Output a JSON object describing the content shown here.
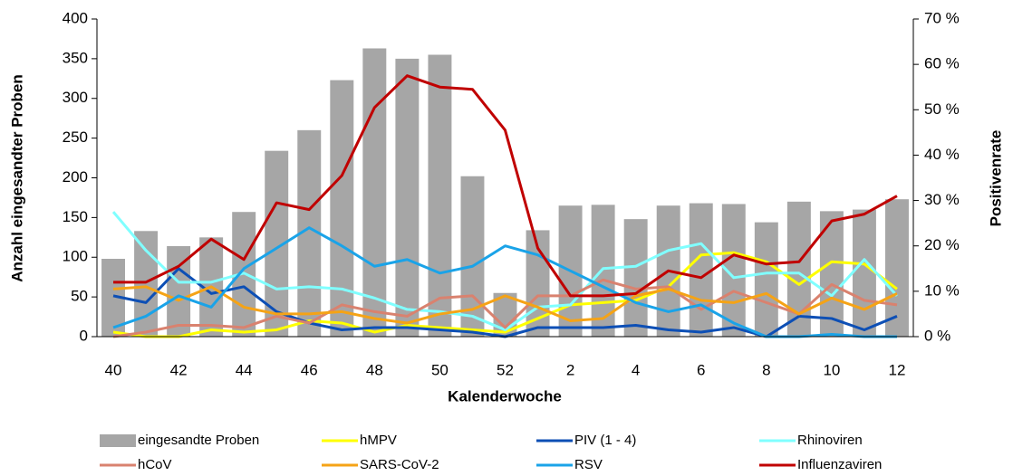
{
  "chart_data": {
    "type": "combo",
    "x_label": "Kalenderwoche",
    "y_label": "Anzahl eingesandter Proben",
    "y2_label": "Positivenrate",
    "categories": [
      40,
      null,
      42,
      null,
      44,
      null,
      46,
      null,
      48,
      null,
      50,
      null,
      52,
      null,
      2,
      null,
      4,
      null,
      6,
      null,
      8,
      null,
      10,
      null,
      12
    ],
    "ylim": [
      0,
      400
    ],
    "yticks": [
      0,
      50,
      100,
      150,
      200,
      250,
      300,
      350,
      400
    ],
    "y2lim": [
      0,
      70
    ],
    "y2ticks": [
      {
        "value": 0,
        "label": "0 %"
      },
      {
        "value": 10,
        "label": "10 %"
      },
      {
        "value": 20,
        "label": "20 %"
      },
      {
        "value": 30,
        "label": "30 %"
      },
      {
        "value": 40,
        "label": "40 %"
      },
      {
        "value": 50,
        "label": "50 %"
      },
      {
        "value": 60,
        "label": "60 %"
      },
      {
        "value": 70,
        "label": "70 %"
      }
    ],
    "series": [
      {
        "name": "eingesandte Proben",
        "type": "bar",
        "color": "#a6a6a6",
        "values": [
          98,
          133,
          114,
          125,
          157,
          234,
          260,
          323,
          363,
          350,
          355,
          202,
          55,
          134,
          165,
          166,
          148,
          165,
          168,
          167,
          144,
          170,
          158,
          160,
          173
        ]
      },
      {
        "name": "hMPV",
        "type": "line",
        "axis": "y2",
        "color": "#ffff00",
        "values": [
          1,
          0,
          0,
          1.5,
          1,
          1.5,
          3.5,
          3,
          1,
          2.5,
          2,
          1.5,
          1,
          4,
          7,
          7.5,
          8,
          11,
          18,
          18.5,
          16.5,
          11.5,
          16.5,
          16,
          10.5
        ]
      },
      {
        "name": "PIV (1 - 4)",
        "type": "line",
        "axis": "y2",
        "color": "#0d4fb5",
        "values": [
          9,
          7.5,
          15,
          9.5,
          11,
          5.5,
          3,
          1.5,
          2,
          2,
          1.5,
          1,
          0,
          2,
          2,
          2,
          2.5,
          1.5,
          1,
          2,
          0,
          4.5,
          4,
          1.5,
          4.5
        ]
      },
      {
        "name": "Rhinoviren",
        "type": "line",
        "axis": "y2",
        "color": "#80ffff",
        "values": [
          27.5,
          19,
          12,
          12,
          14,
          10.5,
          11,
          10.5,
          8.5,
          6,
          5.5,
          4.5,
          1.5,
          6.5,
          7,
          15,
          15.5,
          19,
          20.5,
          13,
          14,
          14,
          9,
          17,
          9
        ]
      },
      {
        "name": "hCoV",
        "type": "line",
        "axis": "y2",
        "color": "#d9826f",
        "values": [
          0,
          1,
          2.5,
          2.5,
          2,
          4.5,
          3,
          7,
          5.5,
          4.5,
          8.5,
          9,
          2,
          9,
          9,
          12.5,
          10.5,
          11,
          6,
          10,
          7.5,
          5,
          11.5,
          8,
          7
        ]
      },
      {
        "name": "SARS-CoV-2",
        "type": "line",
        "axis": "y2",
        "color": "#f5a316",
        "values": [
          10.5,
          11,
          8,
          11,
          6.5,
          5,
          5,
          5.5,
          4,
          3,
          5,
          6,
          9,
          6.5,
          3.5,
          4,
          9,
          10.5,
          8,
          7.5,
          9.5,
          5,
          8.5,
          6,
          9.5
        ]
      },
      {
        "name": "RSV",
        "type": "line",
        "axis": "y2",
        "color": "#1aa3e8",
        "values": [
          2,
          4.5,
          9,
          6.5,
          15,
          19.5,
          24,
          20,
          15.5,
          17,
          14,
          15.5,
          20,
          18,
          14.5,
          11,
          7.5,
          5.5,
          7,
          3,
          0,
          0,
          0.5,
          0,
          0
        ]
      },
      {
        "name": "Influenzaviren",
        "type": "line",
        "axis": "y2",
        "color": "#c00000",
        "values": [
          12,
          12,
          15.5,
          21.5,
          17,
          29.5,
          28,
          35.5,
          50.5,
          57.5,
          55,
          54.5,
          45.5,
          19.5,
          9,
          9,
          9.5,
          14.5,
          13,
          18,
          16,
          16.5,
          25.5,
          27,
          31
        ]
      }
    ]
  }
}
